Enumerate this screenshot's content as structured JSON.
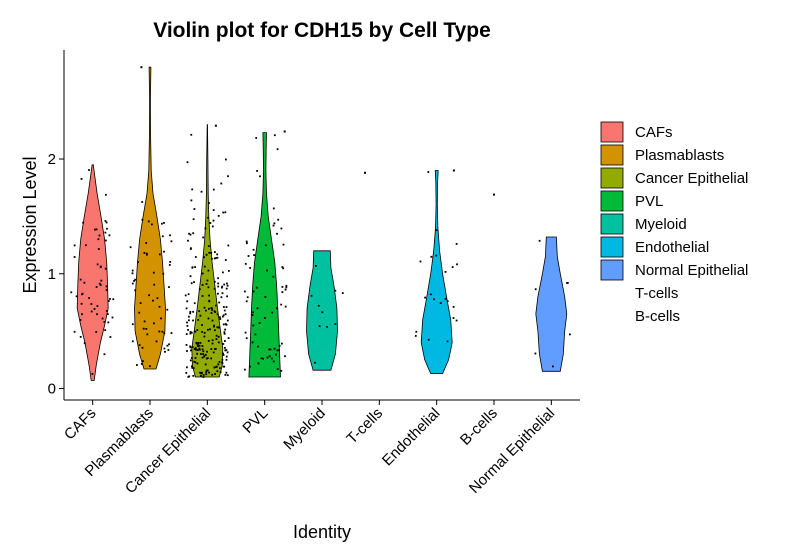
{
  "chart_data": {
    "type": "violin",
    "title": "Violin plot for CDH15 by Cell Type",
    "xlabel": "Identity",
    "ylabel": "Expression Level",
    "ylim": [
      -0.1,
      2.95
    ],
    "yticks": [
      0,
      1,
      2
    ],
    "categories": [
      "CAFs",
      "Plasmablasts",
      "Cancer Epithelial",
      "PVL",
      "Myeloid",
      "T-cells",
      "Endothelial",
      "B-cells",
      "Normal Epithelial"
    ],
    "colors": [
      "#F8766D",
      "#D39200",
      "#93AA00",
      "#00BA38",
      "#00C19F",
      "#00B9E3",
      "#00B9E3",
      "#DB72FB",
      "#619CFF"
    ],
    "violins": [
      {
        "category": "CAFs",
        "color": "#F8766D",
        "profile": [
          [
            0.07,
            0.05
          ],
          [
            0.2,
            0.12
          ],
          [
            0.4,
            0.26
          ],
          [
            0.55,
            0.4
          ],
          [
            0.7,
            0.52
          ],
          [
            0.9,
            0.5
          ],
          [
            1.1,
            0.47
          ],
          [
            1.3,
            0.4
          ],
          [
            1.5,
            0.28
          ],
          [
            1.7,
            0.15
          ],
          [
            1.85,
            0.07
          ],
          [
            1.95,
            0.02
          ]
        ]
      },
      {
        "category": "Plasmablasts",
        "color": "#D39200",
        "profile": [
          [
            0.17,
            0.2
          ],
          [
            0.3,
            0.35
          ],
          [
            0.5,
            0.5
          ],
          [
            0.7,
            0.52
          ],
          [
            0.9,
            0.47
          ],
          [
            1.1,
            0.42
          ],
          [
            1.3,
            0.35
          ],
          [
            1.5,
            0.23
          ],
          [
            1.7,
            0.1
          ],
          [
            1.9,
            0.04
          ],
          [
            2.2,
            0.02
          ],
          [
            2.5,
            0.015
          ],
          [
            2.8,
            0.03
          ]
        ]
      },
      {
        "category": "Cancer Epithelial",
        "color": "#93AA00",
        "profile": [
          [
            0.1,
            0.4
          ],
          [
            0.2,
            0.5
          ],
          [
            0.35,
            0.52
          ],
          [
            0.5,
            0.44
          ],
          [
            0.7,
            0.34
          ],
          [
            0.9,
            0.25
          ],
          [
            1.1,
            0.16
          ],
          [
            1.3,
            0.09
          ],
          [
            1.5,
            0.05
          ],
          [
            1.7,
            0.03
          ],
          [
            2.0,
            0.02
          ],
          [
            2.3,
            0.005
          ]
        ]
      },
      {
        "category": "PVL",
        "color": "#00BA38",
        "profile": [
          [
            0.1,
            0.53
          ],
          [
            0.3,
            0.5
          ],
          [
            0.5,
            0.47
          ],
          [
            0.7,
            0.44
          ],
          [
            0.9,
            0.4
          ],
          [
            1.1,
            0.34
          ],
          [
            1.3,
            0.23
          ],
          [
            1.5,
            0.12
          ],
          [
            1.7,
            0.06
          ],
          [
            1.9,
            0.04
          ],
          [
            2.1,
            0.05
          ],
          [
            2.23,
            0.06
          ]
        ]
      },
      {
        "category": "Myeloid",
        "color": "#00C19F",
        "profile": [
          [
            0.16,
            0.3
          ],
          [
            0.3,
            0.45
          ],
          [
            0.5,
            0.52
          ],
          [
            0.7,
            0.5
          ],
          [
            0.9,
            0.4
          ],
          [
            1.05,
            0.3
          ],
          [
            1.2,
            0.28
          ]
        ]
      },
      {
        "category": "Endothelial",
        "color": "#00B9E3",
        "profile": [
          [
            0.13,
            0.2
          ],
          [
            0.25,
            0.4
          ],
          [
            0.4,
            0.52
          ],
          [
            0.6,
            0.47
          ],
          [
            0.8,
            0.33
          ],
          [
            1.0,
            0.2
          ],
          [
            1.2,
            0.1
          ],
          [
            1.4,
            0.04
          ],
          [
            1.6,
            0.02
          ],
          [
            1.8,
            0.03
          ],
          [
            1.9,
            0.05
          ]
        ]
      },
      {
        "category": "Normal Epithelial",
        "color": "#619CFF",
        "profile": [
          [
            0.15,
            0.3
          ],
          [
            0.3,
            0.4
          ],
          [
            0.5,
            0.45
          ],
          [
            0.65,
            0.52
          ],
          [
            0.8,
            0.45
          ],
          [
            1.0,
            0.3
          ],
          [
            1.15,
            0.2
          ],
          [
            1.32,
            0.17
          ]
        ]
      }
    ],
    "outlier_points": [
      {
        "category": "PVL",
        "value": 2.24,
        "offset": 0.35
      },
      {
        "category": "T-cells",
        "value": 1.88,
        "offset": -0.25
      },
      {
        "category": "Endothelial",
        "value": 1.9,
        "offset": 0.3
      },
      {
        "category": "B-cells",
        "value": 1.69,
        "offset": 0.0
      },
      {
        "category": "Plasmablasts",
        "value": 2.8,
        "offset": -0.15
      },
      {
        "category": "Cancer Epithelial",
        "value": 2.29,
        "offset": 0.15
      }
    ],
    "point_counts": {
      "CAFs": 60,
      "Plasmablasts": 60,
      "Cancer Epithelial": 240,
      "PVL": 70,
      "Myeloid": 10,
      "Endothelial": 22,
      "Normal Epithelial": 7
    },
    "legend": {
      "placement": "right",
      "entries": [
        {
          "label": "CAFs",
          "color": "#F8766D"
        },
        {
          "label": "Plasmablasts",
          "color": "#D39200"
        },
        {
          "label": "Cancer Epithelial",
          "color": "#93AA00"
        },
        {
          "label": "PVL",
          "color": "#00BA38"
        },
        {
          "label": "Myeloid",
          "color": "#00C19F"
        },
        {
          "label": "Endothelial",
          "color": "#00B9E3"
        },
        {
          "label": "Normal Epithelial",
          "color": "#619CFF"
        },
        {
          "label": "T-cells",
          "color": ""
        },
        {
          "label": "B-cells",
          "color": ""
        }
      ]
    }
  }
}
